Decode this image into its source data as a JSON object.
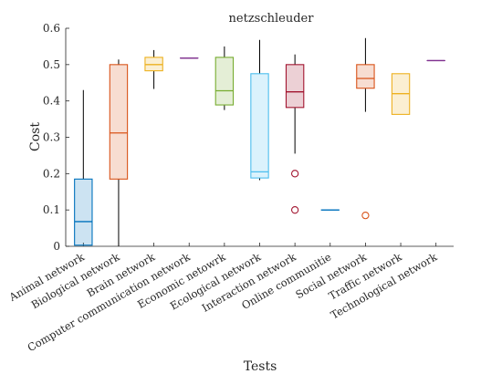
{
  "chart_data": {
    "type": "box",
    "title": "netzschleuder",
    "xlabel": "Tests",
    "ylabel": "Cost",
    "ylim": [
      0,
      0.6
    ],
    "yticks": [
      0,
      0.1,
      0.2,
      0.3,
      0.4,
      0.5,
      0.6
    ],
    "ytick_labels": [
      "0",
      "0.1",
      "0.2",
      "0.3",
      "0.4",
      "0.5",
      "0.6"
    ],
    "grid": false,
    "categories": [
      "Animal network",
      "Biological network",
      "Brain network",
      "Computer communication network",
      "Economic netowrk",
      "Ecological network",
      "Interaction network",
      "Online communitie",
      "Social network",
      "Traffic network",
      "Technological network"
    ],
    "boxes": [
      {
        "min": 0.003,
        "q1": 0.003,
        "median": 0.068,
        "q3": 0.185,
        "max": 0.43,
        "outliers": [],
        "color": "#0072BD"
      },
      {
        "min": 0.0,
        "q1": 0.185,
        "median": 0.312,
        "q3": 0.5,
        "max": 0.514,
        "outliers": [],
        "color": "#D95319"
      },
      {
        "min": 0.433,
        "q1": 0.483,
        "median": 0.5,
        "q3": 0.52,
        "max": 0.54,
        "outliers": [],
        "color": "#EDB120"
      },
      {
        "min": 0.518,
        "q1": 0.518,
        "median": 0.518,
        "q3": 0.518,
        "max": 0.518,
        "outliers": [],
        "color": "#7E2F8E"
      },
      {
        "min": 0.375,
        "q1": 0.389,
        "median": 0.428,
        "q3": 0.52,
        "max": 0.55,
        "outliers": [],
        "color": "#77AC30"
      },
      {
        "min": 0.182,
        "q1": 0.188,
        "median": 0.205,
        "q3": 0.475,
        "max": 0.568,
        "outliers": [],
        "color": "#4DBEEE"
      },
      {
        "min": 0.255,
        "q1": 0.382,
        "median": 0.425,
        "q3": 0.5,
        "max": 0.528,
        "outliers": [
          0.2,
          0.1
        ],
        "color": "#A2142F"
      },
      {
        "min": 0.1,
        "q1": 0.1,
        "median": 0.1,
        "q3": 0.1,
        "max": 0.1,
        "outliers": [],
        "color": "#0072BD"
      },
      {
        "min": 0.37,
        "q1": 0.435,
        "median": 0.462,
        "q3": 0.5,
        "max": 0.573,
        "outliers": [
          0.085
        ],
        "color": "#D95319"
      },
      {
        "min": 0.363,
        "q1": 0.363,
        "median": 0.42,
        "q3": 0.475,
        "max": 0.475,
        "outliers": [],
        "color": "#EDB120"
      },
      {
        "min": 0.511,
        "q1": 0.511,
        "median": 0.511,
        "q3": 0.511,
        "max": 0.511,
        "outliers": [],
        "color": "#7E2F8E"
      }
    ]
  }
}
